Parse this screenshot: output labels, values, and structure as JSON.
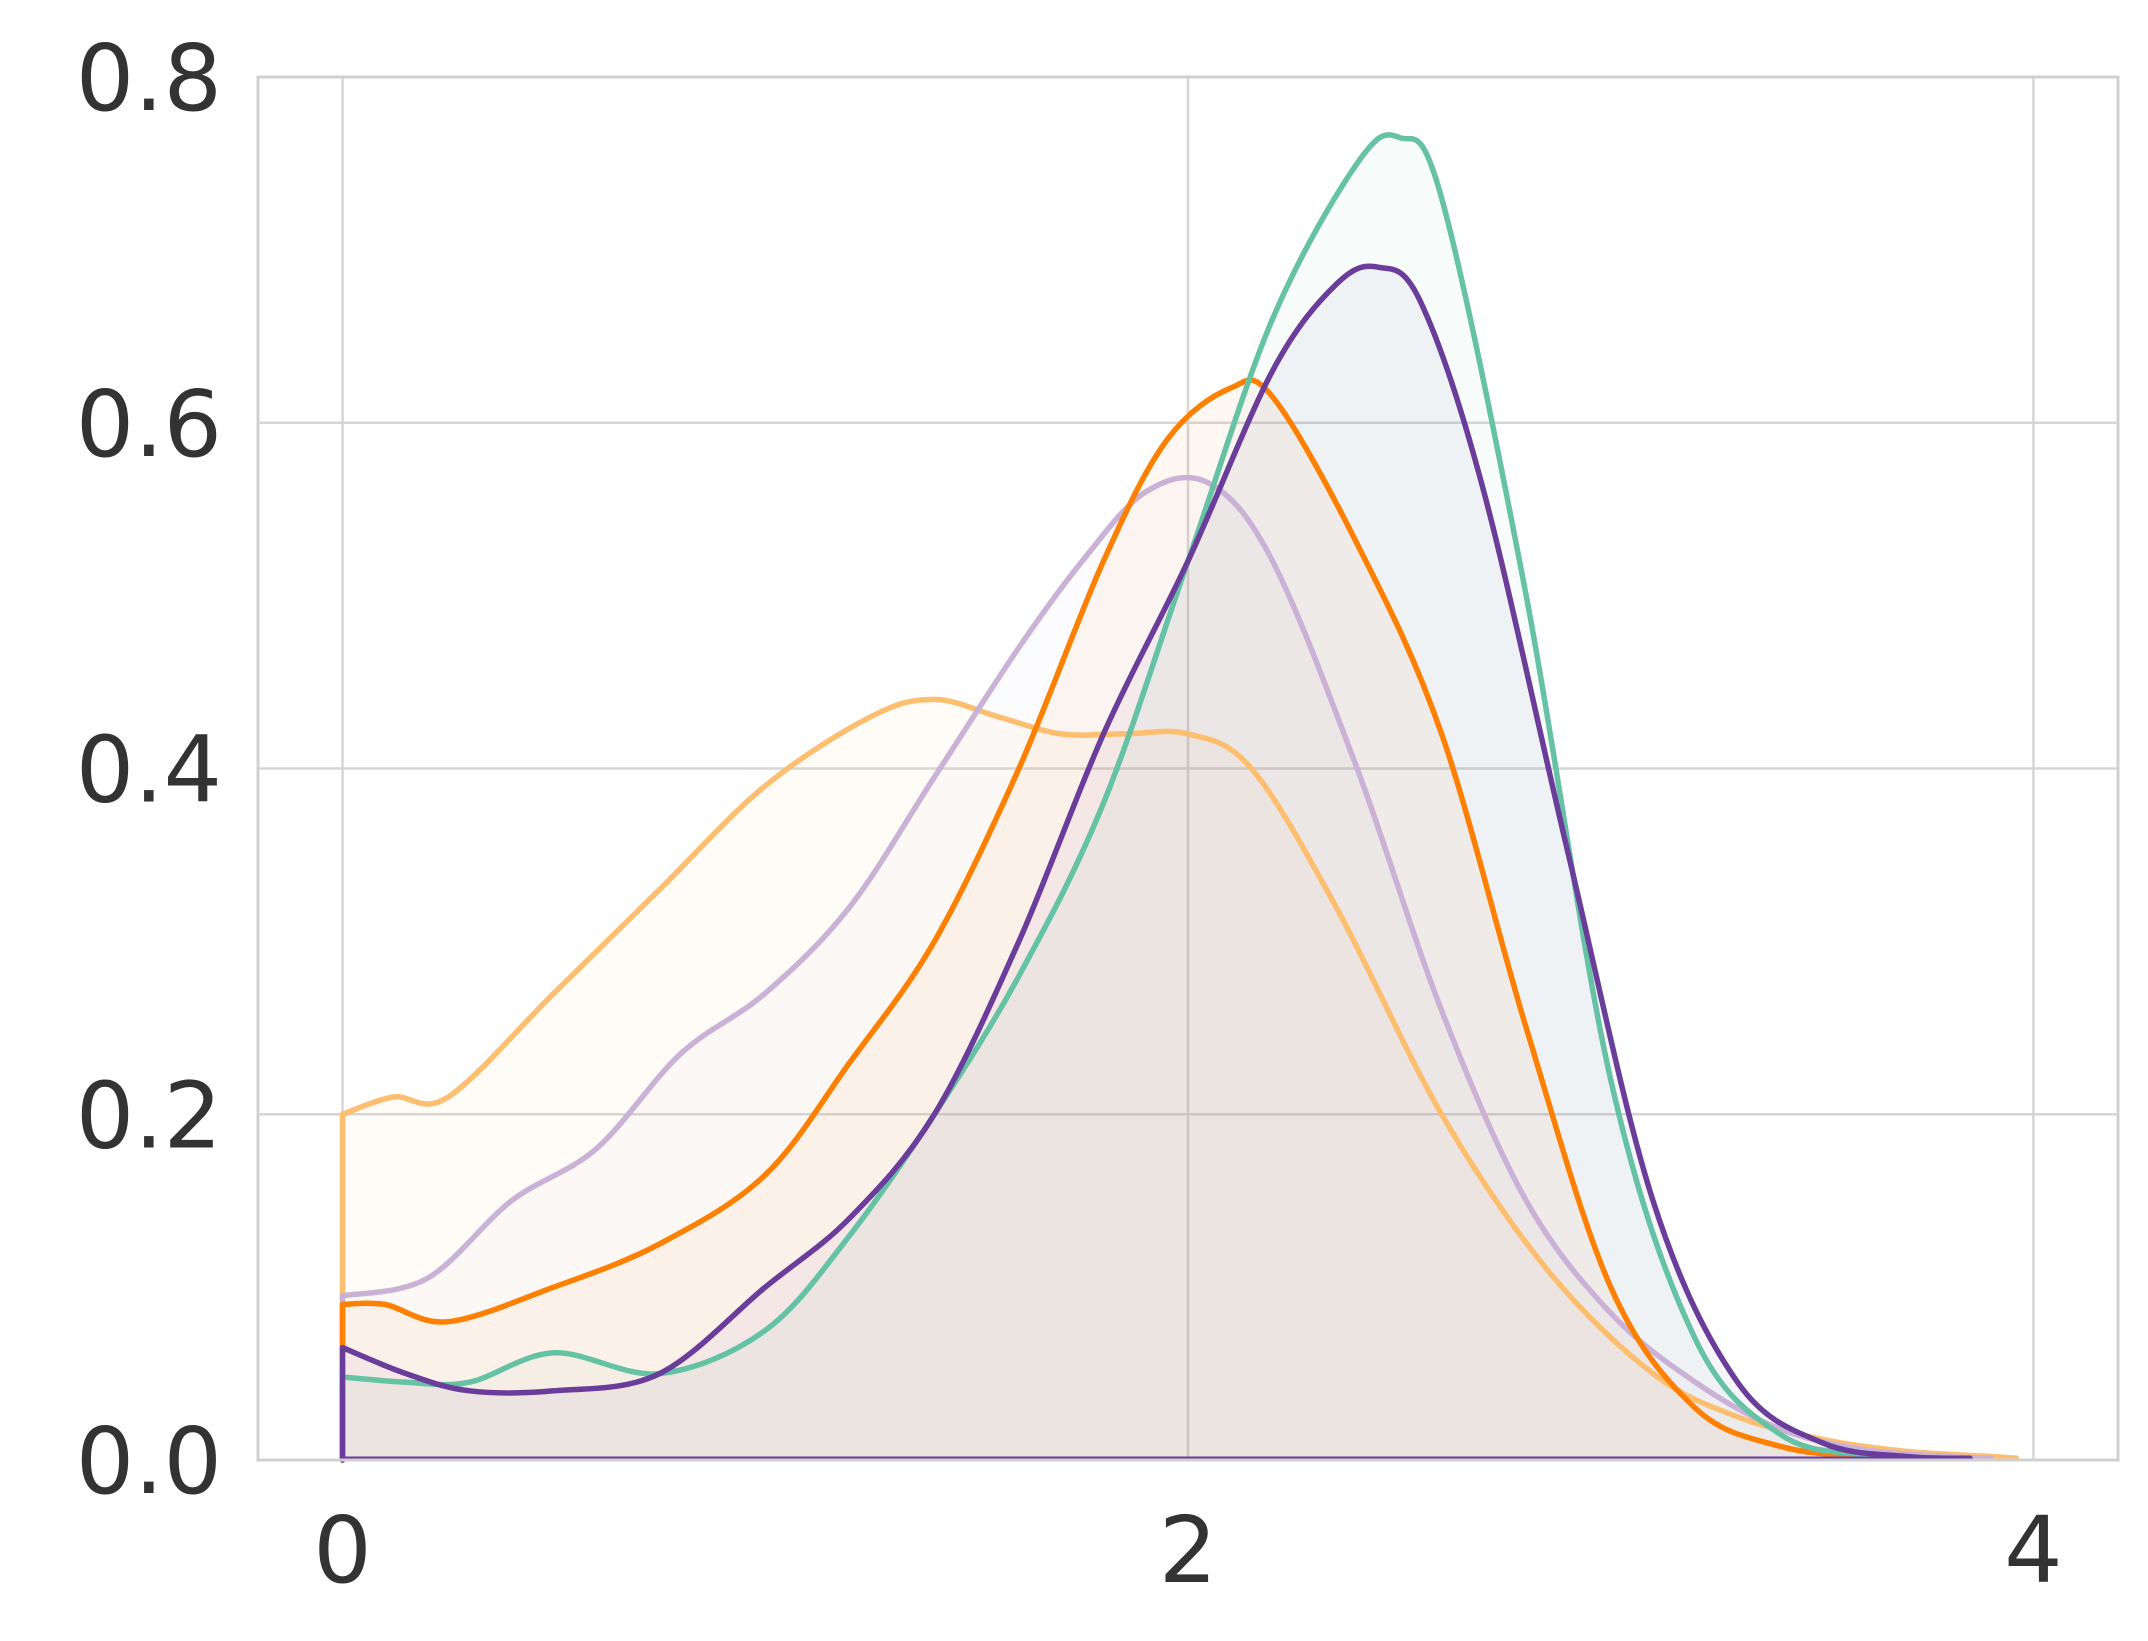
{
  "chart_data": {
    "type": "area",
    "title": "",
    "xlabel": "",
    "ylabel": "",
    "xlim": [
      -0.2,
      4.2
    ],
    "ylim": [
      0,
      0.8
    ],
    "xticks": [
      0,
      2,
      4
    ],
    "yticks": [
      0.0,
      0.2,
      0.4,
      0.6,
      0.8
    ],
    "xtick_labels": [
      "0",
      "2",
      "4"
    ],
    "ytick_labels": [
      "0.0",
      "0.2",
      "0.4",
      "0.6",
      "0.8"
    ],
    "grid": true,
    "legend": "none",
    "series": [
      {
        "color": "#fdbf6f",
        "x": [
          0,
          0.12,
          0.25,
          0.5,
          0.75,
          1.0,
          1.25,
          1.4,
          1.55,
          1.7,
          1.85,
          2.0,
          2.15,
          2.35,
          2.6,
          2.85,
          3.1,
          3.3,
          3.5,
          3.7,
          3.9,
          3.96
        ],
        "y": [
          0.2,
          0.21,
          0.21,
          0.27,
          0.33,
          0.39,
          0.43,
          0.44,
          0.43,
          0.42,
          0.42,
          0.42,
          0.4,
          0.32,
          0.2,
          0.11,
          0.05,
          0.025,
          0.012,
          0.005,
          0.002,
          0.001
        ]
      },
      {
        "color": "#cab2d6",
        "x": [
          0,
          0.2,
          0.4,
          0.6,
          0.8,
          1.0,
          1.2,
          1.4,
          1.6,
          1.75,
          1.9,
          2.05,
          2.2,
          2.4,
          2.6,
          2.8,
          3.0,
          3.2,
          3.4,
          3.6,
          3.8,
          3.9
        ],
        "y": [
          0.095,
          0.105,
          0.15,
          0.18,
          0.235,
          0.27,
          0.32,
          0.395,
          0.47,
          0.52,
          0.56,
          0.565,
          0.52,
          0.4,
          0.26,
          0.15,
          0.085,
          0.045,
          0.018,
          0.006,
          0.002,
          0.001
        ]
      },
      {
        "color": "#ff7f00",
        "x": [
          0,
          0.1,
          0.25,
          0.5,
          0.75,
          1.0,
          1.2,
          1.4,
          1.6,
          1.8,
          1.95,
          2.1,
          2.2,
          2.4,
          2.6,
          2.8,
          3.0,
          3.2,
          3.4,
          3.6,
          3.8
        ],
        "y": [
          0.09,
          0.09,
          0.08,
          0.1,
          0.125,
          0.165,
          0.23,
          0.3,
          0.4,
          0.52,
          0.59,
          0.62,
          0.615,
          0.53,
          0.42,
          0.25,
          0.1,
          0.03,
          0.008,
          0.002,
          0.001
        ]
      },
      {
        "color": "#66c2a5",
        "x": [
          0,
          0.15,
          0.3,
          0.5,
          0.75,
          1.0,
          1.2,
          1.4,
          1.6,
          1.8,
          2.0,
          2.2,
          2.4,
          2.5,
          2.6,
          2.8,
          3.0,
          3.2,
          3.4,
          3.6,
          3.8
        ],
        "y": [
          0.048,
          0.045,
          0.045,
          0.062,
          0.05,
          0.075,
          0.13,
          0.2,
          0.28,
          0.38,
          0.52,
          0.66,
          0.75,
          0.765,
          0.73,
          0.5,
          0.22,
          0.07,
          0.015,
          0.003,
          0.001
        ]
      },
      {
        "color": "#6a3d9a",
        "x": [
          0,
          0.15,
          0.3,
          0.5,
          0.75,
          1.0,
          1.2,
          1.4,
          1.6,
          1.8,
          2.0,
          2.2,
          2.35,
          2.45,
          2.55,
          2.7,
          2.9,
          3.1,
          3.3,
          3.5,
          3.7,
          3.85
        ],
        "y": [
          0.065,
          0.05,
          0.04,
          0.04,
          0.05,
          0.1,
          0.14,
          0.2,
          0.3,
          0.42,
          0.52,
          0.63,
          0.68,
          0.69,
          0.67,
          0.56,
          0.35,
          0.15,
          0.045,
          0.01,
          0.002,
          0.001
        ]
      }
    ]
  }
}
